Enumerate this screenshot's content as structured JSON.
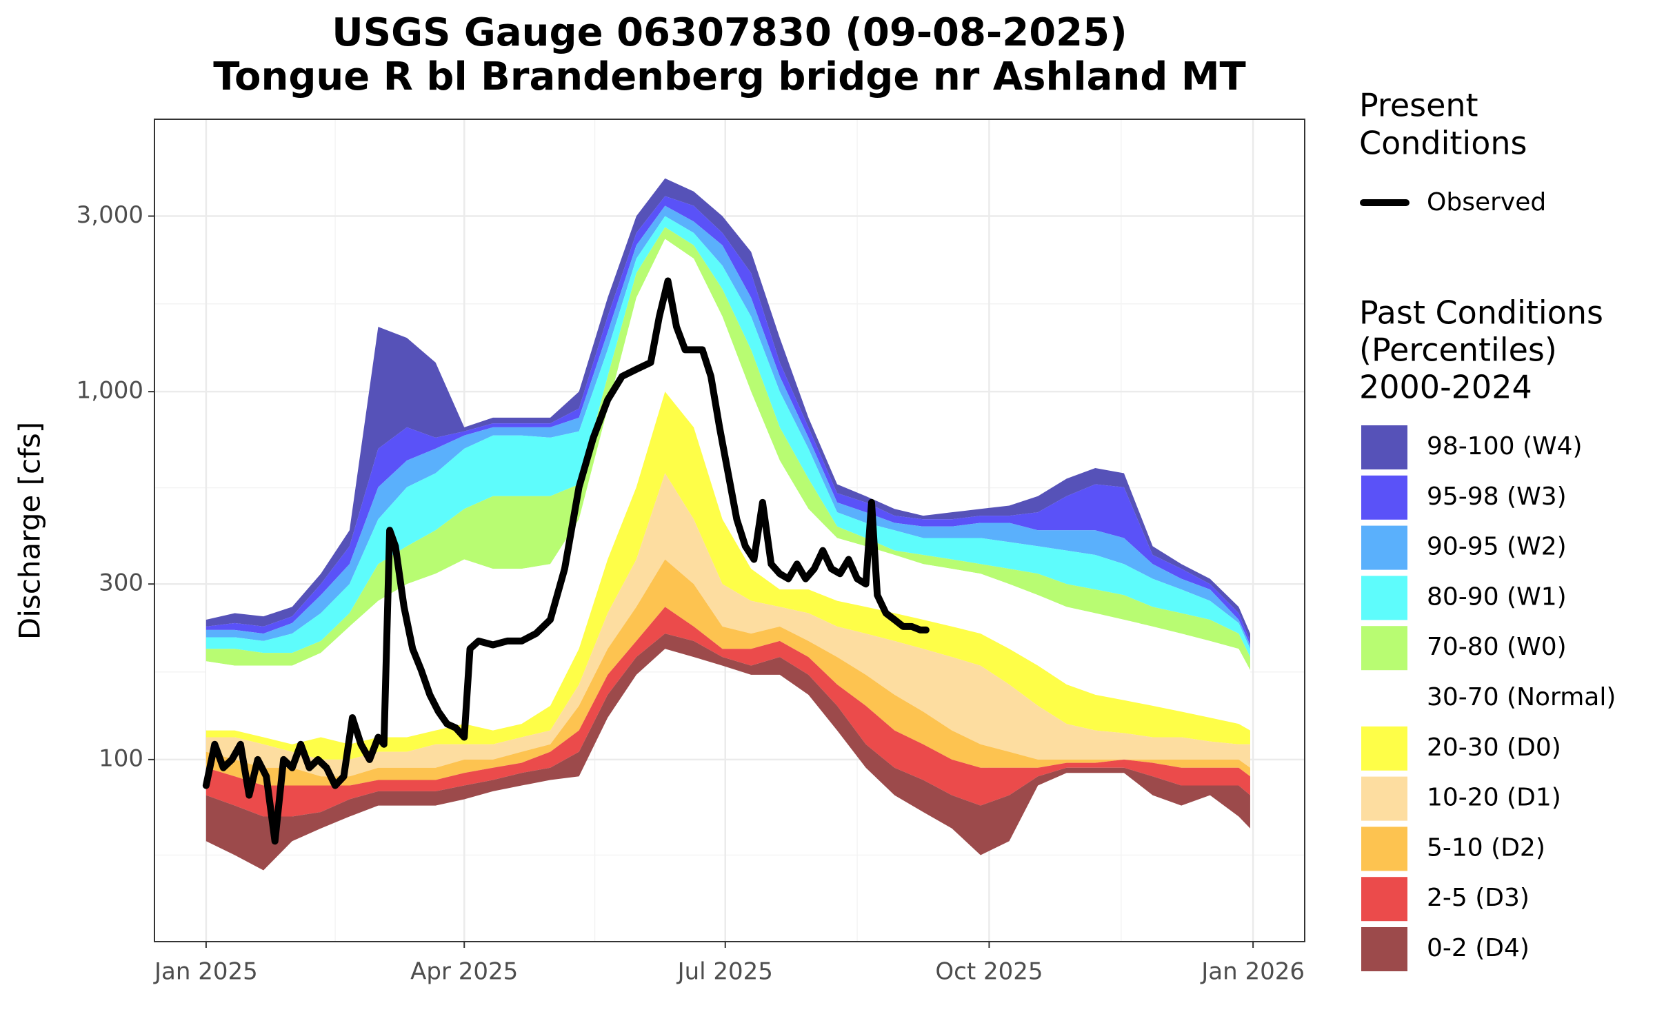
{
  "chart_data": {
    "type": "band_area",
    "title": [
      "USGS Gauge 06307830 (09-08-2025)",
      "Tongue R bl Brandenberg bridge nr Ashland MT"
    ],
    "y_label": "Discharge [cfs]",
    "log_y": true,
    "grid": true,
    "legend_position": "right",
    "xlim": [
      -18,
      383
    ],
    "xticks": [
      {
        "value": 0,
        "label": "Jan 2025"
      },
      {
        "value": 90,
        "label": "Apr 2025"
      },
      {
        "value": 181,
        "label": "Jul 2025"
      },
      {
        "value": 273,
        "label": "Oct 2025"
      },
      {
        "value": 365,
        "label": "Jan 2026"
      }
    ],
    "xminor": [
      45,
      135.5,
      227,
      319
    ],
    "ylim": [
      32,
      5500
    ],
    "yticks": [
      100,
      300,
      {
        "value": 1000,
        "label": "1,000"
      },
      {
        "value": 3000,
        "label": "3,000"
      }
    ],
    "yminor": [
      55,
      173,
      548,
      1732
    ],
    "x": [
      0,
      10,
      20,
      30,
      40,
      50,
      60,
      70,
      80,
      90,
      100,
      110,
      120,
      130,
      140,
      150,
      160,
      170,
      180,
      190,
      200,
      210,
      220,
      230,
      240,
      250,
      260,
      270,
      280,
      290,
      300,
      310,
      320,
      330,
      340,
      350,
      360,
      364
    ],
    "line_legend_title": [
      "Present",
      "Conditions"
    ],
    "band_legend_title": [
      "Past Conditions",
      "(Percentiles)",
      "2000-2024"
    ],
    "series": [
      {
        "name": "98-100 (W4)",
        "color": "#5652b8",
        "lower": [
          230,
          235,
          230,
          245,
          300,
          380,
          700,
          800,
          750,
          780,
          820,
          820,
          820,
          900,
          1600,
          2700,
          3400,
          3200,
          2700,
          2100,
          1200,
          800,
          530,
          500,
          460,
          450,
          450,
          460,
          460,
          470,
          520,
          560,
          550,
          360,
          330,
          300,
          250,
          210
        ],
        "upper": [
          240,
          250,
          245,
          260,
          320,
          420,
          1500,
          1400,
          1200,
          800,
          850,
          850,
          850,
          1000,
          1800,
          3000,
          3800,
          3500,
          3000,
          2400,
          1400,
          850,
          560,
          520,
          480,
          460,
          470,
          480,
          490,
          520,
          580,
          620,
          600,
          380,
          340,
          310,
          260,
          220
        ]
      },
      {
        "name": "95-98 (W3)",
        "color": "#5a52f8",
        "lower": [
          225,
          225,
          220,
          235,
          280,
          340,
          550,
          650,
          700,
          760,
          800,
          800,
          800,
          850,
          1450,
          2500,
          3200,
          2900,
          2500,
          1800,
          1100,
          750,
          500,
          470,
          440,
          430,
          430,
          440,
          440,
          420,
          420,
          420,
          400,
          340,
          310,
          290,
          240,
          205
        ],
        "upper": [
          230,
          235,
          230,
          245,
          300,
          380,
          700,
          800,
          750,
          780,
          820,
          820,
          820,
          900,
          1600,
          2700,
          3400,
          3200,
          2700,
          2100,
          1200,
          800,
          530,
          500,
          460,
          450,
          450,
          460,
          460,
          470,
          520,
          560,
          550,
          360,
          330,
          300,
          250,
          210
        ]
      },
      {
        "name": "90-95 (W2)",
        "color": "#5ab0fc",
        "lower": [
          215,
          215,
          210,
          220,
          250,
          300,
          450,
          550,
          600,
          700,
          760,
          760,
          750,
          780,
          1300,
          2300,
          3000,
          2700,
          2200,
          1600,
          1000,
          700,
          470,
          440,
          420,
          400,
          400,
          400,
          390,
          380,
          370,
          360,
          340,
          310,
          290,
          270,
          235,
          200
        ],
        "upper": [
          225,
          225,
          220,
          235,
          280,
          340,
          550,
          650,
          700,
          760,
          800,
          800,
          800,
          850,
          1450,
          2500,
          3200,
          2900,
          2500,
          1800,
          1100,
          750,
          500,
          470,
          440,
          430,
          430,
          440,
          440,
          420,
          420,
          420,
          400,
          340,
          310,
          290,
          240,
          205
        ]
      },
      {
        "name": "80-90 (W1)",
        "color": "#5efcfc",
        "lower": [
          200,
          200,
          195,
          195,
          210,
          250,
          340,
          380,
          420,
          480,
          520,
          520,
          520,
          560,
          1100,
          2100,
          2800,
          2500,
          1900,
          1300,
          800,
          580,
          430,
          400,
          370,
          360,
          350,
          340,
          330,
          320,
          300,
          290,
          280,
          260,
          250,
          240,
          220,
          190
        ],
        "upper": [
          215,
          215,
          210,
          220,
          250,
          300,
          450,
          550,
          600,
          700,
          760,
          760,
          750,
          780,
          1300,
          2300,
          3000,
          2700,
          2200,
          1600,
          1000,
          700,
          470,
          440,
          420,
          400,
          400,
          400,
          390,
          380,
          370,
          360,
          340,
          310,
          290,
          270,
          235,
          200
        ]
      },
      {
        "name": "70-80 (W0)",
        "color": "#b8fc72",
        "lower": [
          185,
          180,
          180,
          180,
          195,
          230,
          270,
          300,
          320,
          350,
          330,
          330,
          340,
          450,
          900,
          1800,
          2600,
          2300,
          1600,
          1000,
          650,
          480,
          400,
          380,
          360,
          340,
          330,
          320,
          300,
          280,
          260,
          250,
          240,
          230,
          220,
          210,
          200,
          175
        ],
        "upper": [
          200,
          200,
          195,
          195,
          210,
          250,
          340,
          380,
          420,
          480,
          520,
          520,
          520,
          560,
          1100,
          2100,
          2800,
          2500,
          1900,
          1300,
          800,
          580,
          430,
          400,
          370,
          360,
          350,
          340,
          330,
          320,
          300,
          290,
          280,
          260,
          250,
          240,
          220,
          190
        ]
      },
      {
        "name": "30-70 (Normal)",
        "color": "#ffffff",
        "lower": [
          120,
          120,
          115,
          110,
          115,
          110,
          115,
          115,
          120,
          125,
          120,
          125,
          140,
          200,
          350,
          550,
          1000,
          800,
          450,
          330,
          290,
          290,
          270,
          260,
          250,
          240,
          230,
          220,
          200,
          180,
          160,
          150,
          145,
          140,
          135,
          130,
          125,
          120
        ],
        "upper": [
          185,
          180,
          180,
          180,
          195,
          230,
          270,
          300,
          320,
          350,
          330,
          330,
          340,
          450,
          900,
          1800,
          2600,
          2300,
          1600,
          1000,
          650,
          480,
          400,
          380,
          360,
          340,
          330,
          320,
          300,
          280,
          260,
          250,
          240,
          230,
          220,
          210,
          200,
          175
        ]
      },
      {
        "name": "20-30 (D0)",
        "color": "#fefe48",
        "lower": [
          115,
          115,
          110,
          105,
          100,
          100,
          105,
          105,
          110,
          110,
          110,
          115,
          120,
          160,
          250,
          350,
          600,
          450,
          300,
          270,
          260,
          250,
          230,
          220,
          210,
          200,
          190,
          180,
          160,
          140,
          125,
          120,
          118,
          115,
          115,
          112,
          110,
          110
        ],
        "upper": [
          120,
          120,
          115,
          110,
          115,
          110,
          115,
          115,
          120,
          125,
          120,
          125,
          140,
          200,
          350,
          550,
          1000,
          800,
          450,
          330,
          290,
          290,
          270,
          260,
          250,
          240,
          230,
          220,
          200,
          180,
          160,
          150,
          145,
          140,
          135,
          130,
          125,
          120
        ]
      },
      {
        "name": "10-20 (D1)",
        "color": "#fddda0",
        "lower": [
          105,
          100,
          95,
          95,
          90,
          90,
          95,
          95,
          95,
          100,
          100,
          105,
          110,
          140,
          200,
          260,
          350,
          300,
          230,
          220,
          230,
          210,
          190,
          170,
          150,
          135,
          120,
          110,
          105,
          100,
          100,
          100,
          100,
          100,
          100,
          100,
          100,
          95
        ],
        "upper": [
          115,
          115,
          110,
          105,
          100,
          100,
          105,
          105,
          110,
          110,
          110,
          115,
          120,
          160,
          250,
          350,
          600,
          450,
          300,
          270,
          260,
          250,
          230,
          220,
          210,
          200,
          190,
          180,
          160,
          140,
          125,
          120,
          118,
          115,
          115,
          112,
          110,
          110
        ]
      },
      {
        "name": "5-10 (D2)",
        "color": "#fdc350",
        "lower": [
          95,
          90,
          85,
          85,
          85,
          85,
          88,
          88,
          88,
          92,
          95,
          98,
          105,
          120,
          170,
          210,
          260,
          230,
          200,
          200,
          210,
          190,
          160,
          140,
          120,
          110,
          100,
          95,
          95,
          95,
          98,
          98,
          100,
          98,
          95,
          95,
          95,
          90
        ],
        "upper": [
          105,
          100,
          95,
          95,
          90,
          90,
          95,
          95,
          95,
          100,
          100,
          105,
          110,
          140,
          200,
          260,
          350,
          300,
          230,
          220,
          230,
          210,
          190,
          170,
          150,
          135,
          120,
          110,
          105,
          100,
          100,
          100,
          100,
          100,
          100,
          100,
          100,
          95
        ]
      },
      {
        "name": "2-5 (D3)",
        "color": "#eb4b4b",
        "lower": [
          80,
          75,
          70,
          70,
          72,
          78,
          82,
          82,
          82,
          85,
          88,
          92,
          95,
          105,
          150,
          190,
          220,
          210,
          190,
          180,
          190,
          170,
          140,
          110,
          95,
          88,
          80,
          75,
          80,
          90,
          95,
          95,
          95,
          90,
          85,
          85,
          85,
          80
        ],
        "upper": [
          95,
          90,
          85,
          85,
          85,
          85,
          88,
          88,
          88,
          92,
          95,
          98,
          105,
          120,
          170,
          210,
          260,
          230,
          200,
          200,
          210,
          190,
          160,
          140,
          120,
          110,
          100,
          95,
          95,
          95,
          98,
          98,
          100,
          98,
          95,
          95,
          95,
          90
        ]
      },
      {
        "name": "0-2 (D4)",
        "color": "#9c4a4b",
        "lower": [
          60,
          55,
          50,
          60,
          65,
          70,
          75,
          75,
          75,
          78,
          82,
          85,
          88,
          90,
          130,
          170,
          200,
          190,
          180,
          170,
          170,
          150,
          120,
          95,
          80,
          72,
          65,
          55,
          60,
          85,
          92,
          92,
          92,
          80,
          75,
          80,
          70,
          65
        ],
        "upper": [
          80,
          75,
          70,
          70,
          72,
          78,
          82,
          82,
          82,
          85,
          88,
          92,
          95,
          105,
          150,
          190,
          220,
          210,
          190,
          180,
          190,
          170,
          140,
          110,
          95,
          88,
          80,
          75,
          80,
          90,
          95,
          95,
          95,
          90,
          85,
          85,
          85,
          80
        ]
      }
    ],
    "line_series": {
      "name": "Observed",
      "color": "#000000",
      "x": [
        0,
        3,
        6,
        9,
        12,
        15,
        18,
        21,
        24,
        27,
        30,
        33,
        36,
        39,
        42,
        45,
        48,
        51,
        54,
        57,
        60,
        62,
        64,
        66,
        69,
        72,
        75,
        78,
        81,
        84,
        87,
        90,
        92,
        95,
        100,
        105,
        110,
        115,
        120,
        125,
        130,
        135,
        140,
        145,
        150,
        155,
        158,
        161,
        164,
        167,
        170,
        173,
        176,
        179,
        182,
        185,
        188,
        191,
        194,
        197,
        200,
        203,
        206,
        209,
        212,
        215,
        218,
        221,
        224,
        227,
        230,
        232,
        234,
        237,
        240,
        243,
        246,
        249,
        251
      ],
      "values": [
        85,
        110,
        95,
        100,
        110,
        80,
        100,
        90,
        60,
        100,
        95,
        110,
        95,
        100,
        95,
        85,
        90,
        130,
        110,
        100,
        115,
        110,
        420,
        380,
        260,
        200,
        175,
        150,
        135,
        125,
        122,
        115,
        200,
        210,
        205,
        210,
        210,
        220,
        240,
        330,
        550,
        750,
        950,
        1100,
        1150,
        1200,
        1600,
        2000,
        1500,
        1300,
        1300,
        1300,
        1100,
        800,
        600,
        450,
        380,
        350,
        500,
        340,
        320,
        310,
        340,
        310,
        330,
        370,
        330,
        320,
        350,
        310,
        300,
        500,
        280,
        250,
        240,
        230,
        230,
        225,
        225
      ]
    }
  }
}
